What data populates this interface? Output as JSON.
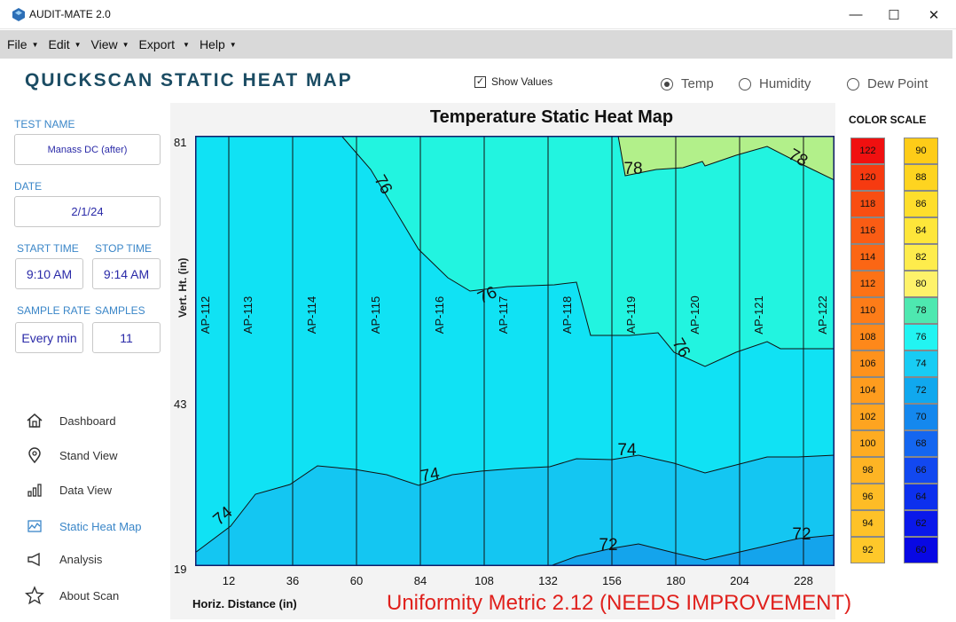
{
  "window": {
    "title": "AUDIT-MATE 2.0",
    "minimize": "—",
    "maximize": "☐",
    "close": "✕"
  },
  "menu": [
    {
      "label": "File"
    },
    {
      "label": "Edit"
    },
    {
      "label": "View"
    },
    {
      "label": "Export"
    },
    {
      "label": "Help"
    }
  ],
  "header": {
    "title": "QUICKSCAN STATIC HEAT MAP",
    "show_values_label": "Show Values",
    "show_values_checked": true,
    "radios": [
      {
        "label": "Temp",
        "selected": true
      },
      {
        "label": "Humidity",
        "selected": false
      },
      {
        "label": "Dew Point",
        "selected": false
      }
    ]
  },
  "form": {
    "test_name_label": "TEST NAME",
    "test_name": "Manass DC (after)",
    "date_label": "DATE",
    "date": "2/1/24",
    "start_time_label": "START TIME",
    "start_time": "9:10 AM",
    "stop_time_label": "STOP TIME",
    "stop_time": "9:14 AM",
    "sample_rate_label": "SAMPLE RATE",
    "sample_rate": "Every min",
    "samples_label": "SAMPLES",
    "samples": "11"
  },
  "nav": [
    {
      "label": "Dashboard",
      "icon": "home-icon"
    },
    {
      "label": "Stand View",
      "icon": "location-pin-icon"
    },
    {
      "label": "Data View",
      "icon": "bar-chart-icon"
    },
    {
      "label": "Static Heat Map",
      "icon": "heat-map-icon",
      "active": true
    },
    {
      "label": "Analysis",
      "icon": "megaphone-icon"
    },
    {
      "label": "About Scan",
      "icon": "star-icon"
    }
  ],
  "chart_data": {
    "type": "heatmap",
    "title": "Temperature Static Heat Map",
    "xlabel": "Horiz. Distance (in)",
    "ylabel": "Vert. Ht. (in)",
    "x_ticks": [
      "12",
      "36",
      "60",
      "84",
      "108",
      "132",
      "156",
      "180",
      "204",
      "228"
    ],
    "y_ticks": [
      "81",
      "43",
      "19"
    ],
    "xlim": [
      0,
      240
    ],
    "ylim": [
      19,
      81
    ],
    "access_points": [
      {
        "label": "AP-112",
        "x": 12
      },
      {
        "label": "AP-113",
        "x": 12
      },
      {
        "label": "AP-114",
        "x": 36
      },
      {
        "label": "AP-115",
        "x": 60
      },
      {
        "label": "AP-116",
        "x": 84
      },
      {
        "label": "AP-117",
        "x": 108
      },
      {
        "label": "AP-118",
        "x": 132
      },
      {
        "label": "AP-119",
        "x": 156
      },
      {
        "label": "AP-120",
        "x": 180
      },
      {
        "label": "AP-121",
        "x": 204
      },
      {
        "label": "AP-122",
        "x": 228
      }
    ],
    "contour_labels": [
      "76",
      "76",
      "76",
      "78",
      "78",
      "74",
      "74",
      "74",
      "72",
      "72"
    ],
    "uniformity_metric": "Uniformity Metric 2.12 (NEEDS IMPROVEMENT)"
  },
  "color_scale": {
    "title": "COLOR SCALE",
    "left": [
      {
        "value": "122",
        "color": "#f01010"
      },
      {
        "value": "120",
        "color": "#f63a10"
      },
      {
        "value": "118",
        "color": "#f84e12"
      },
      {
        "value": "116",
        "color": "#fa5c14"
      },
      {
        "value": "114",
        "color": "#fb6614"
      },
      {
        "value": "112",
        "color": "#fc7216"
      },
      {
        "value": "110",
        "color": "#fd7c18"
      },
      {
        "value": "108",
        "color": "#fe881a"
      },
      {
        "value": "106",
        "color": "#fe921c"
      },
      {
        "value": "104",
        "color": "#fe9c1e"
      },
      {
        "value": "102",
        "color": "#fea420"
      },
      {
        "value": "100",
        "color": "#feac22"
      },
      {
        "value": "98",
        "color": "#feb424"
      },
      {
        "value": "96",
        "color": "#febc26"
      },
      {
        "value": "94",
        "color": "#fec228"
      },
      {
        "value": "92",
        "color": "#fec82a"
      }
    ],
    "right": [
      {
        "value": "90",
        "color": "#fecc18"
      },
      {
        "value": "88",
        "color": "#fed420"
      },
      {
        "value": "86",
        "color": "#fede2c"
      },
      {
        "value": "84",
        "color": "#fee63a"
      },
      {
        "value": "82",
        "color": "#feec4c"
      },
      {
        "value": "80",
        "color": "#fef26a"
      },
      {
        "value": "78",
        "color": "#4ee8b0"
      },
      {
        "value": "76",
        "color": "#22f4f2"
      },
      {
        "value": "74",
        "color": "#18ccf4"
      },
      {
        "value": "72",
        "color": "#10a8ee"
      },
      {
        "value": "70",
        "color": "#1488ee"
      },
      {
        "value": "68",
        "color": "#1466f0"
      },
      {
        "value": "66",
        "color": "#1248f0"
      },
      {
        "value": "64",
        "color": "#0c30ee"
      },
      {
        "value": "62",
        "color": "#0a18ea"
      },
      {
        "value": "60",
        "color": "#0808e4"
      }
    ]
  },
  "colors": {
    "zone_78": "#b2f08a",
    "zone_76": "#22f4e0",
    "zone_75": "#10e2f4",
    "zone_74": "#14c6f2",
    "zone_72": "#14a4ec",
    "heading": "#1b4c63",
    "accent": "#3a86c8"
  }
}
